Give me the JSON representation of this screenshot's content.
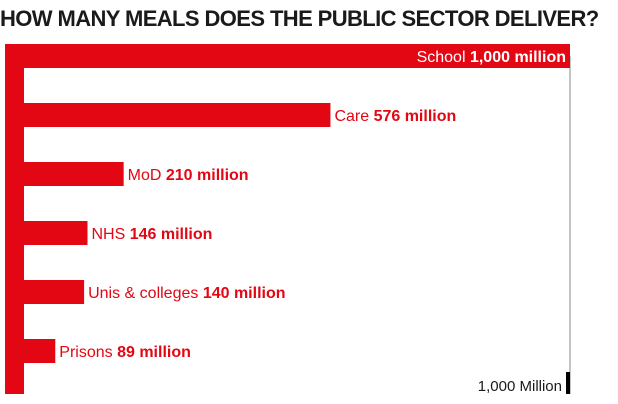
{
  "chart_data": {
    "type": "bar",
    "orientation": "horizontal",
    "title": "HOW MANY MEALS DOES THE PUBLIC SECTOR DELIVER?",
    "unit": "million",
    "categories": [
      "School",
      "Care",
      "MoD",
      "NHS",
      "Unis & colleges",
      "Prisons"
    ],
    "values": [
      1000,
      576,
      210,
      146,
      140,
      89
    ],
    "value_labels": [
      "1,000 million",
      "576 million",
      "210 million",
      "146 million",
      "140 million",
      "89 million"
    ],
    "xlim": [
      0,
      1000
    ],
    "scale_label": "1,000 Million",
    "grid": false,
    "legend": "none",
    "colors": {
      "bar": "#e30613",
      "text": "#1a1a1a",
      "label_on_bar": "#ffffff",
      "axis": "#888888",
      "tick": "#000000"
    }
  }
}
